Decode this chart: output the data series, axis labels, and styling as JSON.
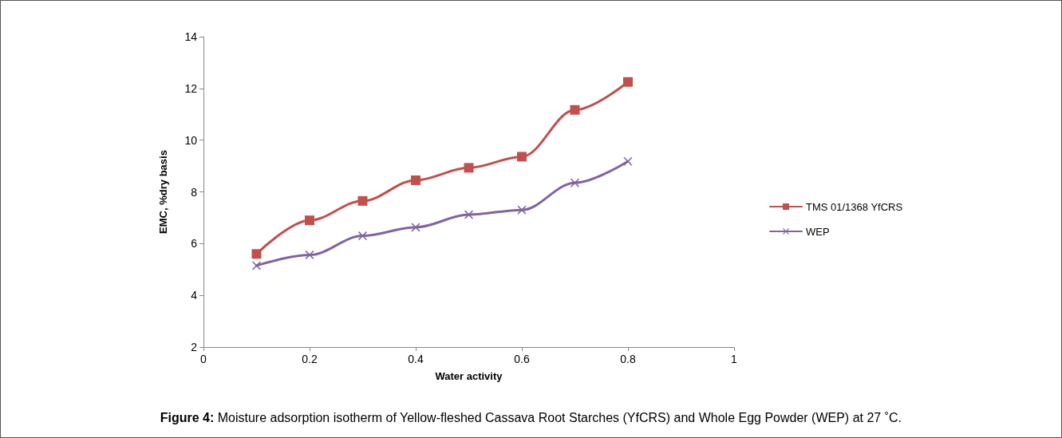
{
  "chart_data": {
    "type": "line",
    "xlabel": "Water activity",
    "ylabel": "EMC, %dry basis",
    "x": [
      0.1,
      0.2,
      0.3,
      0.4,
      0.5,
      0.6,
      0.7,
      0.8
    ],
    "series": [
      {
        "name": "TMS 01/1368 YfCRS",
        "color": "#c0504d",
        "marker": "square",
        "values": [
          5.6,
          6.9,
          7.65,
          8.45,
          8.93,
          9.36,
          11.17,
          12.25
        ]
      },
      {
        "name": "WEP",
        "color": "#8064a2",
        "marker": "cross",
        "values": [
          5.15,
          5.56,
          6.3,
          6.63,
          7.12,
          7.3,
          8.35,
          9.18
        ]
      }
    ],
    "xlim": [
      0,
      1
    ],
    "xticks": [
      0,
      0.2,
      0.4,
      0.6,
      0.8,
      1
    ],
    "ylim": [
      2,
      14
    ],
    "yticks": [
      2,
      4,
      6,
      8,
      10,
      12,
      14
    ],
    "grid": false,
    "legend": "right",
    "line_style": "solid",
    "annotations": [
      "Figure 4: Moisture adsorption isotherm of Yellow-fleshed Cassava Root Starches (YfCRS) and Whole Egg Powder (WEP) at 27 ˚C."
    ]
  }
}
